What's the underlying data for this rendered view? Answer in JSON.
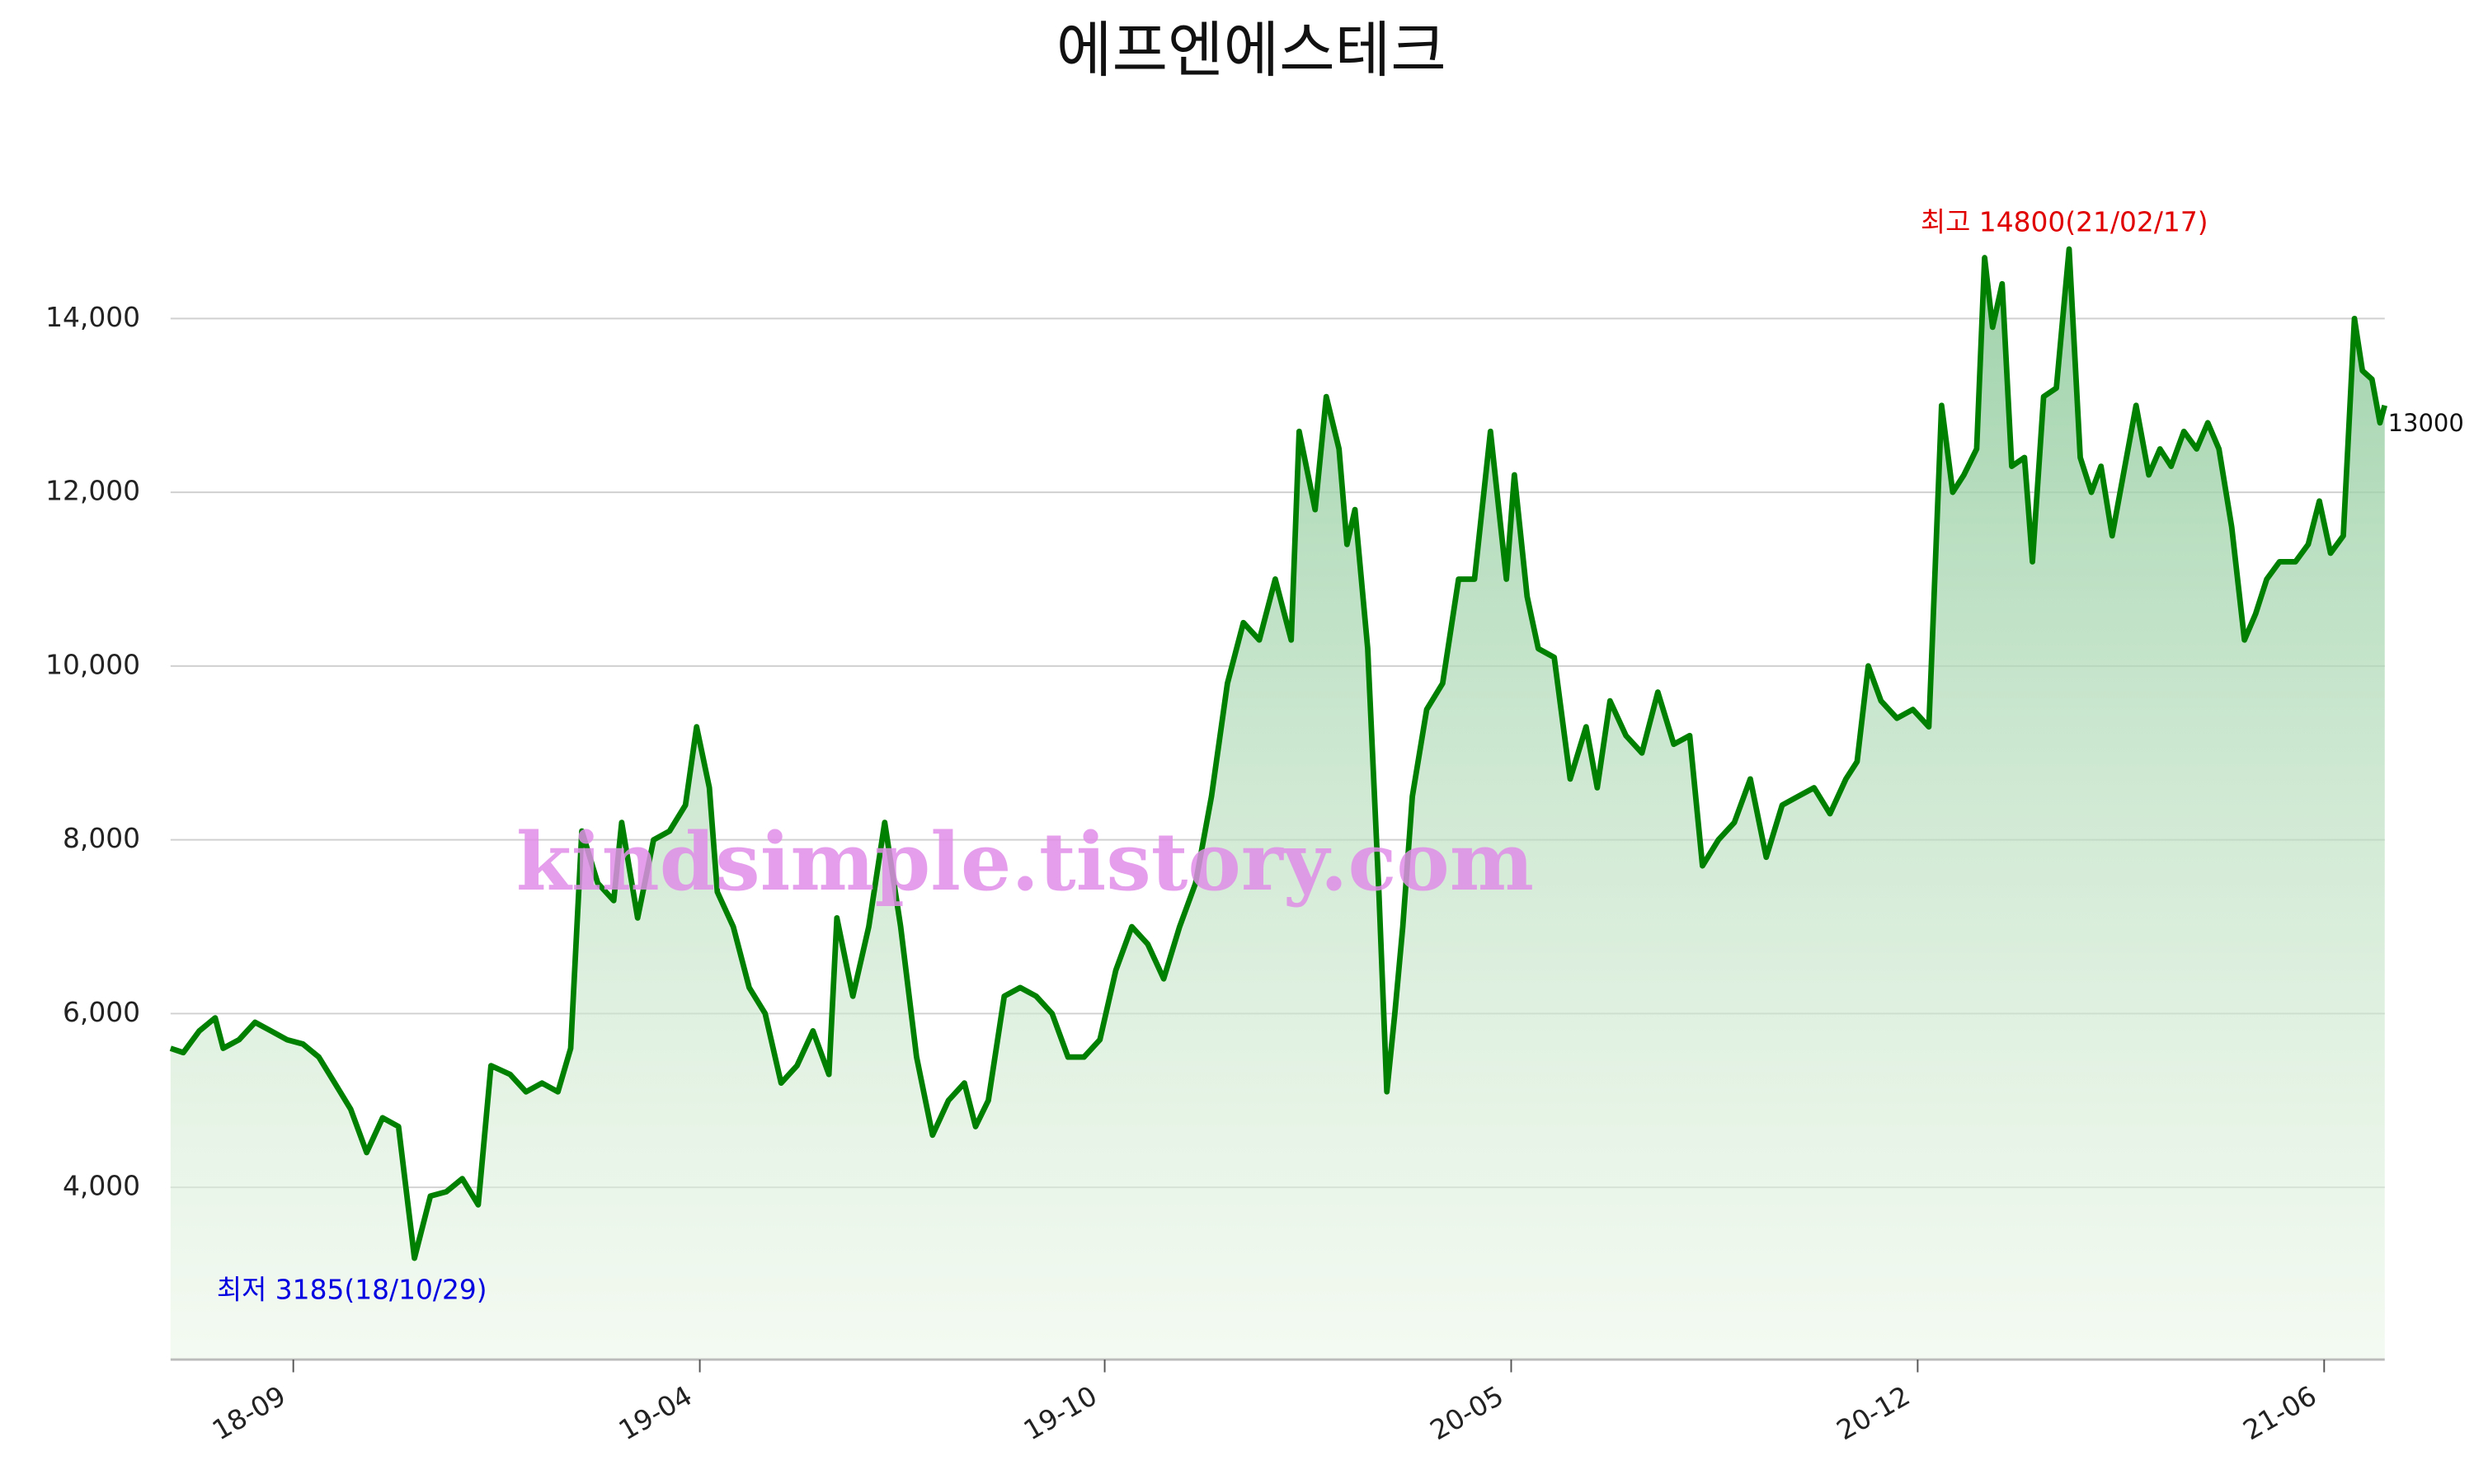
{
  "chart_data": {
    "type": "area-line",
    "title": "에프엔에스테크",
    "x": [
      107,
      115,
      125,
      135,
      140,
      150,
      160,
      170,
      180,
      190,
      200,
      210,
      220,
      230,
      240,
      250,
      260,
      270,
      280,
      290,
      300,
      308,
      320,
      330,
      340,
      350,
      358,
      365,
      375,
      385,
      390,
      400,
      410,
      420,
      430,
      437,
      445,
      450,
      460,
      470,
      480,
      490,
      500,
      510,
      520,
      525,
      535,
      545,
      555,
      565,
      575,
      585,
      595,
      605,
      612,
      620,
      630,
      640,
      650,
      660,
      670,
      680,
      690,
      700,
      710,
      720,
      730,
      740,
      750,
      760,
      770,
      780,
      790,
      800,
      810,
      815,
      825,
      832,
      840,
      845,
      850,
      858,
      865,
      870,
      875,
      880,
      886,
      895,
      905,
      915,
      925,
      935,
      945,
      950,
      958,
      965,
      975,
      985,
      995,
      1002,
      1010,
      1020,
      1030,
      1040,
      1050,
      1060,
      1068,
      1078,
      1088,
      1098,
      1108,
      1118,
      1128,
      1138,
      1148,
      1158,
      1165,
      1172,
      1180,
      1190,
      1200,
      1210,
      1212,
      1218,
      1225,
      1232,
      1240,
      1245,
      1250,
      1256,
      1262,
      1270,
      1275,
      1282,
      1290,
      1298,
      1305,
      1312,
      1318,
      1325,
      1332,
      1340,
      1348,
      1355,
      1362,
      1370,
      1378,
      1385,
      1392,
      1400,
      1408,
      1415,
      1422,
      1430,
      1440,
      1448,
      1455,
      1462,
      1470,
      1477,
      1482,
      1488,
      1493,
      1496
    ],
    "values": [
      5600,
      5550,
      5800,
      5950,
      5600,
      5700,
      5900,
      5800,
      5700,
      5650,
      5500,
      5200,
      4900,
      4400,
      4800,
      4700,
      3185,
      3900,
      3950,
      4100,
      3800,
      5400,
      5300,
      5100,
      5200,
      5100,
      5600,
      8100,
      7500,
      7300,
      8200,
      7100,
      8000,
      8100,
      8400,
      9300,
      8600,
      7400,
      7000,
      6300,
      6000,
      5200,
      5400,
      5800,
      5300,
      7100,
      6200,
      7000,
      8200,
      7000,
      5500,
      4600,
      5000,
      5200,
      4700,
      5000,
      6200,
      6300,
      6200,
      6000,
      5500,
      5500,
      5700,
      6500,
      7000,
      6800,
      6400,
      7000,
      7500,
      8500,
      9800,
      10500,
      10300,
      11000,
      10300,
      12700,
      11800,
      13100,
      12500,
      11400,
      11800,
      10200,
      7400,
      5100,
      6000,
      7000,
      8500,
      9500,
      9800,
      11000,
      11000,
      12700,
      11000,
      12200,
      10800,
      10200,
      10100,
      8700,
      9300,
      8600,
      9600,
      9200,
      9000,
      9700,
      9100,
      9200,
      7700,
      8000,
      8200,
      8700,
      7800,
      8400,
      8500,
      8600,
      8300,
      8700,
      8900,
      10000,
      9600,
      9400,
      9500,
      9300,
      10200,
      13000,
      12000,
      12200,
      12500,
      14700,
      13900,
      14400,
      12300,
      12400,
      11200,
      13100,
      13200,
      14800,
      12400,
      12000,
      12300,
      11500,
      12200,
      13000,
      12200,
      12500,
      12300,
      12700,
      12500,
      12800,
      12500,
      11600,
      10300,
      10600,
      11000,
      11200,
      11200,
      11400,
      11900,
      11300,
      11500,
      14000,
      13400,
      13300,
      12800,
      13000
    ],
    "color": "#008000",
    "xlim": [
      107,
      1496
    ],
    "xticks": [
      {
        "value": 184,
        "label": "18-09"
      },
      {
        "value": 439,
        "label": "19-04"
      },
      {
        "value": 693,
        "label": "19-10"
      },
      {
        "value": 948,
        "label": "20-05"
      },
      {
        "value": 1203,
        "label": "20-12"
      },
      {
        "value": 1458,
        "label": "21-06"
      }
    ],
    "ylim": [
      2018,
      15500
    ],
    "yticks": [
      {
        "value": 4000,
        "label": "4,000"
      },
      {
        "value": 6000,
        "label": "6,000"
      },
      {
        "value": 8000,
        "label": "8,000"
      },
      {
        "value": 10000,
        "label": "10,000"
      },
      {
        "value": 12000,
        "label": "12,000"
      },
      {
        "value": 14000,
        "label": "14,000"
      }
    ],
    "grid": true,
    "annotations": {
      "high": "최고 14800(21/02/17)",
      "low": "최저 3185(18/10/29)",
      "last": "13000",
      "watermark": "kindsimple.tistory.com"
    }
  }
}
